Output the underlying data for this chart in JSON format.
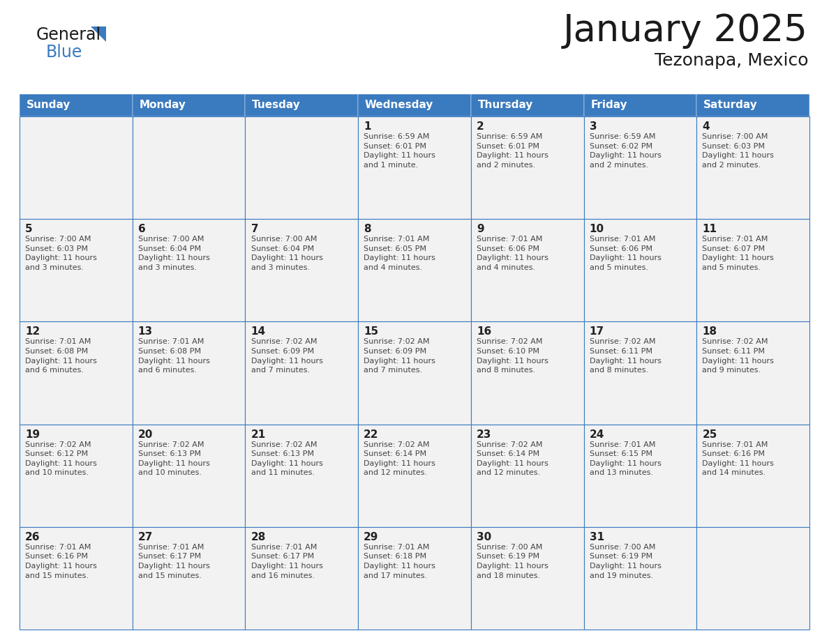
{
  "title": "January 2025",
  "subtitle": "Tezonapa, Mexico",
  "header_color": "#3a7abf",
  "header_text_color": "#FFFFFF",
  "grid_line_color": "#3a7abf",
  "day_names": [
    "Sunday",
    "Monday",
    "Tuesday",
    "Wednesday",
    "Thursday",
    "Friday",
    "Saturday"
  ],
  "background_color": "#FFFFFF",
  "cell_bg_color": "#F2F2F2",
  "text_color": "#333333",
  "calendar_data": [
    [
      {
        "day": "",
        "info": ""
      },
      {
        "day": "",
        "info": ""
      },
      {
        "day": "",
        "info": ""
      },
      {
        "day": "1",
        "info": "Sunrise: 6:59 AM\nSunset: 6:01 PM\nDaylight: 11 hours\nand 1 minute."
      },
      {
        "day": "2",
        "info": "Sunrise: 6:59 AM\nSunset: 6:01 PM\nDaylight: 11 hours\nand 2 minutes."
      },
      {
        "day": "3",
        "info": "Sunrise: 6:59 AM\nSunset: 6:02 PM\nDaylight: 11 hours\nand 2 minutes."
      },
      {
        "day": "4",
        "info": "Sunrise: 7:00 AM\nSunset: 6:03 PM\nDaylight: 11 hours\nand 2 minutes."
      }
    ],
    [
      {
        "day": "5",
        "info": "Sunrise: 7:00 AM\nSunset: 6:03 PM\nDaylight: 11 hours\nand 3 minutes."
      },
      {
        "day": "6",
        "info": "Sunrise: 7:00 AM\nSunset: 6:04 PM\nDaylight: 11 hours\nand 3 minutes."
      },
      {
        "day": "7",
        "info": "Sunrise: 7:00 AM\nSunset: 6:04 PM\nDaylight: 11 hours\nand 3 minutes."
      },
      {
        "day": "8",
        "info": "Sunrise: 7:01 AM\nSunset: 6:05 PM\nDaylight: 11 hours\nand 4 minutes."
      },
      {
        "day": "9",
        "info": "Sunrise: 7:01 AM\nSunset: 6:06 PM\nDaylight: 11 hours\nand 4 minutes."
      },
      {
        "day": "10",
        "info": "Sunrise: 7:01 AM\nSunset: 6:06 PM\nDaylight: 11 hours\nand 5 minutes."
      },
      {
        "day": "11",
        "info": "Sunrise: 7:01 AM\nSunset: 6:07 PM\nDaylight: 11 hours\nand 5 minutes."
      }
    ],
    [
      {
        "day": "12",
        "info": "Sunrise: 7:01 AM\nSunset: 6:08 PM\nDaylight: 11 hours\nand 6 minutes."
      },
      {
        "day": "13",
        "info": "Sunrise: 7:01 AM\nSunset: 6:08 PM\nDaylight: 11 hours\nand 6 minutes."
      },
      {
        "day": "14",
        "info": "Sunrise: 7:02 AM\nSunset: 6:09 PM\nDaylight: 11 hours\nand 7 minutes."
      },
      {
        "day": "15",
        "info": "Sunrise: 7:02 AM\nSunset: 6:09 PM\nDaylight: 11 hours\nand 7 minutes."
      },
      {
        "day": "16",
        "info": "Sunrise: 7:02 AM\nSunset: 6:10 PM\nDaylight: 11 hours\nand 8 minutes."
      },
      {
        "day": "17",
        "info": "Sunrise: 7:02 AM\nSunset: 6:11 PM\nDaylight: 11 hours\nand 8 minutes."
      },
      {
        "day": "18",
        "info": "Sunrise: 7:02 AM\nSunset: 6:11 PM\nDaylight: 11 hours\nand 9 minutes."
      }
    ],
    [
      {
        "day": "19",
        "info": "Sunrise: 7:02 AM\nSunset: 6:12 PM\nDaylight: 11 hours\nand 10 minutes."
      },
      {
        "day": "20",
        "info": "Sunrise: 7:02 AM\nSunset: 6:13 PM\nDaylight: 11 hours\nand 10 minutes."
      },
      {
        "day": "21",
        "info": "Sunrise: 7:02 AM\nSunset: 6:13 PM\nDaylight: 11 hours\nand 11 minutes."
      },
      {
        "day": "22",
        "info": "Sunrise: 7:02 AM\nSunset: 6:14 PM\nDaylight: 11 hours\nand 12 minutes."
      },
      {
        "day": "23",
        "info": "Sunrise: 7:02 AM\nSunset: 6:14 PM\nDaylight: 11 hours\nand 12 minutes."
      },
      {
        "day": "24",
        "info": "Sunrise: 7:01 AM\nSunset: 6:15 PM\nDaylight: 11 hours\nand 13 minutes."
      },
      {
        "day": "25",
        "info": "Sunrise: 7:01 AM\nSunset: 6:16 PM\nDaylight: 11 hours\nand 14 minutes."
      }
    ],
    [
      {
        "day": "26",
        "info": "Sunrise: 7:01 AM\nSunset: 6:16 PM\nDaylight: 11 hours\nand 15 minutes."
      },
      {
        "day": "27",
        "info": "Sunrise: 7:01 AM\nSunset: 6:17 PM\nDaylight: 11 hours\nand 15 minutes."
      },
      {
        "day": "28",
        "info": "Sunrise: 7:01 AM\nSunset: 6:17 PM\nDaylight: 11 hours\nand 16 minutes."
      },
      {
        "day": "29",
        "info": "Sunrise: 7:01 AM\nSunset: 6:18 PM\nDaylight: 11 hours\nand 17 minutes."
      },
      {
        "day": "30",
        "info": "Sunrise: 7:00 AM\nSunset: 6:19 PM\nDaylight: 11 hours\nand 18 minutes."
      },
      {
        "day": "31",
        "info": "Sunrise: 7:00 AM\nSunset: 6:19 PM\nDaylight: 11 hours\nand 19 minutes."
      },
      {
        "day": "",
        "info": ""
      }
    ]
  ],
  "logo_general_color": "#1a1a1a",
  "logo_blue_color": "#3a7abf",
  "logo_triangle_color": "#3a7abf",
  "title_fontsize": 38,
  "subtitle_fontsize": 18,
  "header_fontsize": 11,
  "day_num_fontsize": 11,
  "info_fontsize": 8
}
